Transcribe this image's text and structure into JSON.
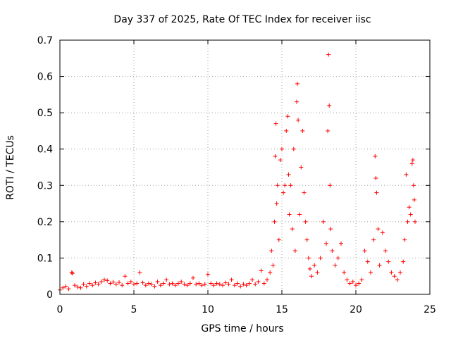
{
  "chart_data": {
    "type": "scatter",
    "title": "Day 337 of 2025, Rate Of TEC Index for receiver iisc",
    "xlabel": "GPS time / hours",
    "ylabel": "ROTI / TECUs",
    "xlim": [
      0,
      25
    ],
    "ylim": [
      0,
      0.7
    ],
    "xticks": [
      0,
      5,
      10,
      15,
      20,
      25
    ],
    "xtick_labels": [
      "0",
      "5",
      "10",
      "15",
      "20",
      "25"
    ],
    "yticks": [
      0,
      0.1,
      0.2,
      0.3,
      0.4,
      0.5,
      0.6,
      0.7
    ],
    "ytick_labels": [
      "0",
      "0.1",
      "0.2",
      "0.3",
      "0.4",
      "0.5",
      "0.6",
      "0.7"
    ],
    "grid": true,
    "marker": "+",
    "marker_color": "#ff0000",
    "series": [
      {
        "name": "ROTI",
        "points": [
          [
            0.0,
            0.012
          ],
          [
            0.2,
            0.018
          ],
          [
            0.4,
            0.022
          ],
          [
            0.6,
            0.015
          ],
          [
            0.8,
            0.06
          ],
          [
            0.85,
            0.058
          ],
          [
            1.0,
            0.025
          ],
          [
            1.2,
            0.02
          ],
          [
            1.4,
            0.018
          ],
          [
            1.6,
            0.028
          ],
          [
            1.8,
            0.022
          ],
          [
            2.0,
            0.03
          ],
          [
            2.2,
            0.025
          ],
          [
            2.4,
            0.032
          ],
          [
            2.6,
            0.028
          ],
          [
            2.8,
            0.035
          ],
          [
            3.0,
            0.04
          ],
          [
            3.2,
            0.038
          ],
          [
            3.4,
            0.03
          ],
          [
            3.6,
            0.034
          ],
          [
            3.8,
            0.028
          ],
          [
            4.0,
            0.033
          ],
          [
            4.2,
            0.025
          ],
          [
            4.4,
            0.05
          ],
          [
            4.6,
            0.03
          ],
          [
            4.8,
            0.035
          ],
          [
            5.0,
            0.028
          ],
          [
            5.2,
            0.03
          ],
          [
            5.4,
            0.06
          ],
          [
            5.6,
            0.032
          ],
          [
            5.8,
            0.025
          ],
          [
            6.0,
            0.03
          ],
          [
            6.2,
            0.028
          ],
          [
            6.4,
            0.022
          ],
          [
            6.6,
            0.035
          ],
          [
            6.8,
            0.025
          ],
          [
            7.0,
            0.03
          ],
          [
            7.2,
            0.04
          ],
          [
            7.4,
            0.028
          ],
          [
            7.6,
            0.03
          ],
          [
            7.8,
            0.025
          ],
          [
            8.0,
            0.03
          ],
          [
            8.2,
            0.035
          ],
          [
            8.4,
            0.028
          ],
          [
            8.6,
            0.025
          ],
          [
            8.8,
            0.03
          ],
          [
            9.0,
            0.045
          ],
          [
            9.2,
            0.028
          ],
          [
            9.4,
            0.03
          ],
          [
            9.6,
            0.025
          ],
          [
            9.8,
            0.028
          ],
          [
            10.0,
            0.055
          ],
          [
            10.2,
            0.03
          ],
          [
            10.4,
            0.025
          ],
          [
            10.6,
            0.03
          ],
          [
            10.8,
            0.028
          ],
          [
            11.0,
            0.025
          ],
          [
            11.2,
            0.032
          ],
          [
            11.4,
            0.028
          ],
          [
            11.6,
            0.04
          ],
          [
            11.8,
            0.025
          ],
          [
            12.0,
            0.03
          ],
          [
            12.2,
            0.022
          ],
          [
            12.4,
            0.028
          ],
          [
            12.6,
            0.025
          ],
          [
            12.8,
            0.03
          ],
          [
            13.0,
            0.04
          ],
          [
            13.2,
            0.028
          ],
          [
            13.4,
            0.035
          ],
          [
            13.6,
            0.065
          ],
          [
            13.8,
            0.03
          ],
          [
            14.0,
            0.04
          ],
          [
            14.2,
            0.06
          ],
          [
            14.3,
            0.12
          ],
          [
            14.4,
            0.08
          ],
          [
            14.5,
            0.2
          ],
          [
            14.55,
            0.38
          ],
          [
            14.6,
            0.47
          ],
          [
            14.65,
            0.25
          ],
          [
            14.7,
            0.3
          ],
          [
            14.8,
            0.15
          ],
          [
            14.9,
            0.37
          ],
          [
            15.0,
            0.4
          ],
          [
            15.1,
            0.28
          ],
          [
            15.2,
            0.3
          ],
          [
            15.3,
            0.45
          ],
          [
            15.4,
            0.49
          ],
          [
            15.45,
            0.33
          ],
          [
            15.5,
            0.22
          ],
          [
            15.6,
            0.3
          ],
          [
            15.7,
            0.18
          ],
          [
            15.8,
            0.4
          ],
          [
            15.9,
            0.12
          ],
          [
            16.0,
            0.53
          ],
          [
            16.05,
            0.58
          ],
          [
            16.1,
            0.48
          ],
          [
            16.2,
            0.22
          ],
          [
            16.3,
            0.35
          ],
          [
            16.4,
            0.45
          ],
          [
            16.5,
            0.28
          ],
          [
            16.6,
            0.2
          ],
          [
            16.7,
            0.15
          ],
          [
            16.8,
            0.1
          ],
          [
            16.9,
            0.07
          ],
          [
            17.0,
            0.05
          ],
          [
            17.2,
            0.08
          ],
          [
            17.4,
            0.06
          ],
          [
            17.6,
            0.1
          ],
          [
            17.8,
            0.2
          ],
          [
            18.0,
            0.14
          ],
          [
            18.1,
            0.45
          ],
          [
            18.15,
            0.66
          ],
          [
            18.2,
            0.52
          ],
          [
            18.25,
            0.3
          ],
          [
            18.3,
            0.18
          ],
          [
            18.4,
            0.12
          ],
          [
            18.6,
            0.08
          ],
          [
            18.8,
            0.1
          ],
          [
            19.0,
            0.14
          ],
          [
            19.2,
            0.06
          ],
          [
            19.4,
            0.04
          ],
          [
            19.6,
            0.03
          ],
          [
            19.8,
            0.035
          ],
          [
            20.0,
            0.025
          ],
          [
            20.2,
            0.03
          ],
          [
            20.4,
            0.04
          ],
          [
            20.6,
            0.12
          ],
          [
            20.8,
            0.09
          ],
          [
            21.0,
            0.06
          ],
          [
            21.2,
            0.15
          ],
          [
            21.3,
            0.38
          ],
          [
            21.35,
            0.32
          ],
          [
            21.4,
            0.28
          ],
          [
            21.5,
            0.18
          ],
          [
            21.6,
            0.08
          ],
          [
            21.8,
            0.17
          ],
          [
            22.0,
            0.12
          ],
          [
            22.2,
            0.09
          ],
          [
            22.4,
            0.06
          ],
          [
            22.6,
            0.05
          ],
          [
            22.8,
            0.04
          ],
          [
            23.0,
            0.06
          ],
          [
            23.2,
            0.09
          ],
          [
            23.3,
            0.15
          ],
          [
            23.4,
            0.33
          ],
          [
            23.5,
            0.2
          ],
          [
            23.6,
            0.24
          ],
          [
            23.7,
            0.22
          ],
          [
            23.8,
            0.36
          ],
          [
            23.85,
            0.37
          ],
          [
            23.9,
            0.3
          ],
          [
            23.95,
            0.26
          ],
          [
            24.0,
            0.2
          ]
        ]
      }
    ]
  }
}
